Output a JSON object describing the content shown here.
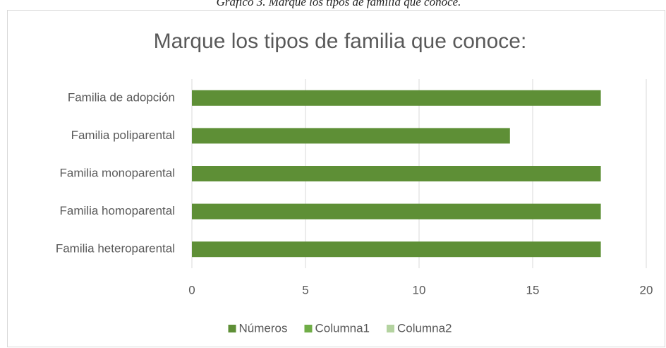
{
  "caption": "Gráfico 3. Marque los tipos de familia que conoce.",
  "chart_data": {
    "type": "hbar",
    "title": "Marque los tipos de familia que conoce:",
    "categories": [
      "Familia de adopción",
      "Familia poliparental",
      "Familia monoparental",
      "Familia homoparental",
      "Familia heteroparental"
    ],
    "series": [
      {
        "name": "Números",
        "color": "#5e8f36",
        "values": [
          18,
          14,
          18,
          18,
          18
        ]
      },
      {
        "name": "Columna1",
        "color": "#70ad47",
        "values": [
          null,
          null,
          null,
          null,
          null
        ]
      },
      {
        "name": "Columna2",
        "color": "#b4d3a0",
        "values": [
          null,
          null,
          null,
          null,
          null
        ]
      }
    ],
    "xlim": [
      0,
      20
    ],
    "xticks": [
      0,
      5,
      10,
      15,
      20
    ],
    "grid": true,
    "legend": "bottom"
  }
}
